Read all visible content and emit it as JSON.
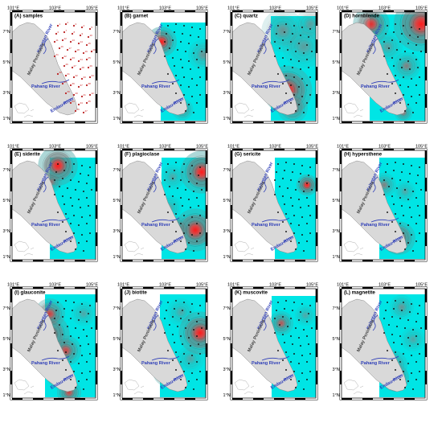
{
  "figure": {
    "lon_ticks": [
      "101°E",
      "103°E",
      "105°E"
    ],
    "lat_ticks": [
      "7°N",
      "5°N",
      "3°N",
      "1°N"
    ],
    "place_labels": {
      "kelantan": "Kelantan River",
      "malay": "Malay Peninsula",
      "pahang": "Pahang River",
      "endau": "Endau River"
    },
    "colors": {
      "sea": "#00e5e5",
      "land": "#d9d9d9",
      "high": "#ff1a1a",
      "mid": "#b05858",
      "river": "#2f3fb8",
      "dot": "#111111"
    },
    "panels": [
      {
        "id": "A",
        "title": "(A) samples"
      },
      {
        "id": "B",
        "title": "(B) garnet"
      },
      {
        "id": "C",
        "title": "(C) quartz"
      },
      {
        "id": "D",
        "title": "(D) hornblende"
      },
      {
        "id": "E",
        "title": "(E) siderite"
      },
      {
        "id": "F",
        "title": "(F) plagioclase"
      },
      {
        "id": "G",
        "title": "(G) sericite"
      },
      {
        "id": "H",
        "title": "(H) hypersthene"
      },
      {
        "id": "I",
        "title": "(I) glauconite"
      },
      {
        "id": "J",
        "title": "(J) biotite"
      },
      {
        "id": "K",
        "title": "(K) muscovite"
      },
      {
        "id": "L",
        "title": "(L) magnetite"
      }
    ]
  }
}
